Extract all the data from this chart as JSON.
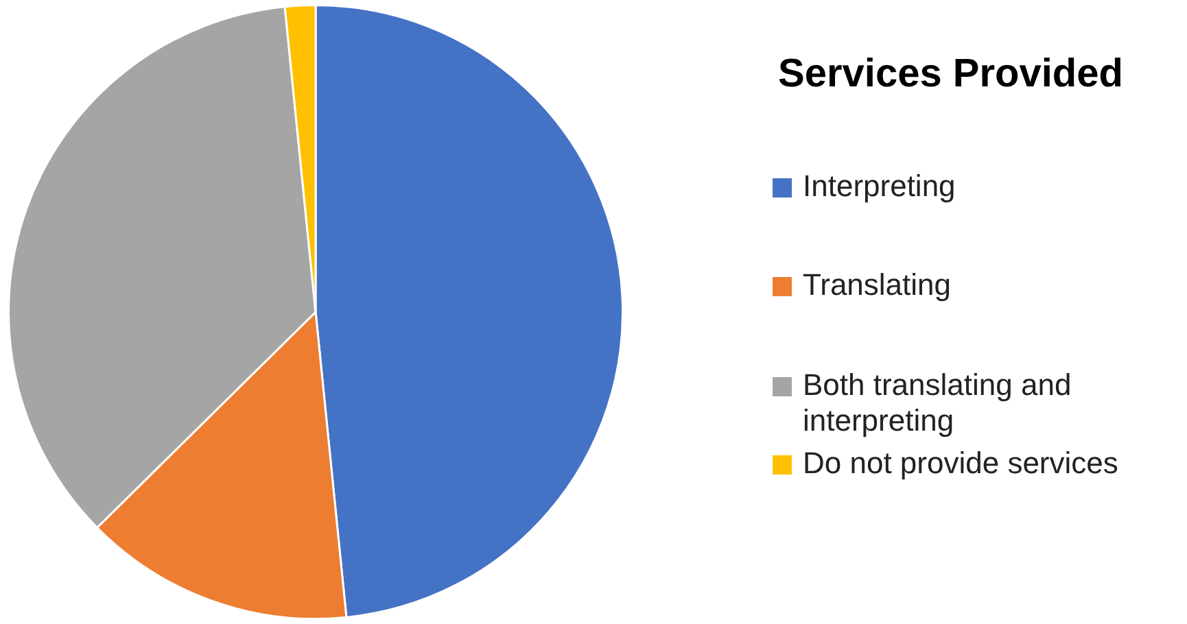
{
  "chart_data": {
    "type": "pie",
    "title": "Services Provided",
    "categories": [
      "Interpreting",
      "Translating",
      "Both translating and interpreting",
      "Do not provide services"
    ],
    "values": [
      48.4,
      14.2,
      35.8,
      1.6
    ],
    "colors": [
      "#4472c4",
      "#ed7d31",
      "#a5a5a5",
      "#ffc000"
    ],
    "legend": "right"
  }
}
